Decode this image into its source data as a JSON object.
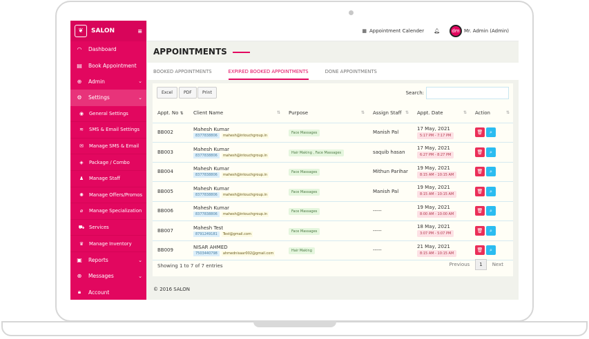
{
  "sidebar": {
    "brand": "SALON",
    "items": [
      {
        "label": "Dashboard",
        "icon": "gauge-icon"
      },
      {
        "label": "Book Appointment",
        "icon": "book-icon"
      },
      {
        "label": "Admin",
        "icon": "lifebuoy-icon",
        "chevron": true
      },
      {
        "label": "Settings",
        "icon": "gear-icon",
        "chevron": true,
        "active": true
      }
    ],
    "sub": [
      {
        "label": "General Settings"
      },
      {
        "label": "SMS & Email Settings"
      },
      {
        "label": "Manage SMS & Email"
      },
      {
        "label": "Package / Combo"
      },
      {
        "label": "Manage Staff"
      },
      {
        "label": "Manage Offers/Promos"
      },
      {
        "label": "Manage Specialization"
      },
      {
        "label": "Services"
      },
      {
        "label": "Manage Inventory"
      }
    ],
    "bottom": [
      {
        "label": "Reports"
      },
      {
        "label": "Messages"
      },
      {
        "label": "Account"
      }
    ]
  },
  "header": {
    "calendar": "Appointment Calender",
    "user": "Mr. Admin (Admin)",
    "avatar": "dm"
  },
  "page": {
    "title": "APPOINTMENTS",
    "tabs": [
      "BOOKED APPOINTMENTS",
      "EXPIRED BOOKED APPOINTMENTS",
      "DONE APPOINTMENTS"
    ],
    "active_tab": 1
  },
  "toolbar": {
    "excel": "Excel",
    "pdf": "PDF",
    "print": "Print",
    "search_label": "Search:",
    "search_value": ""
  },
  "table": {
    "headers": [
      "Appt. No",
      "Client Name",
      "Purpose",
      "Assign Staff",
      "Appt. Date",
      "Action"
    ],
    "rows": [
      {
        "no": "BB002",
        "name": "Mahesh Kumar",
        "phone": "8377838806",
        "email": "mahesh@intouchgroup.in",
        "purpose": "Face Massages",
        "staff": "Manish Pal",
        "date": "17 May, 2021",
        "time": "5:17 PM - 7:17 PM"
      },
      {
        "no": "BB003",
        "name": "Mahesh Kumar",
        "phone": "8377838806",
        "email": "mahesh@intouchgroup.in",
        "purpose": "Hair Making , Face Massages",
        "staff": "saquib hasan",
        "date": "17 May, 2021",
        "time": "6:27 PM - 8:27 PM"
      },
      {
        "no": "BB004",
        "name": "Mahesh Kumar",
        "phone": "8377838806",
        "email": "mahesh@intouchgroup.in",
        "purpose": "Face Massages",
        "staff": "Mithun Parihar",
        "date": "19 May, 2021",
        "time": "8:15 AM - 10:15 AM"
      },
      {
        "no": "BB005",
        "name": "Mahesh Kumar",
        "phone": "8377838806",
        "email": "mahesh@intouchgroup.in",
        "purpose": "Face Massages",
        "staff": "Manish Pal",
        "date": "19 May, 2021",
        "time": "8:15 AM - 10:15 AM"
      },
      {
        "no": "BB006",
        "name": "Mahesh Kumar",
        "phone": "8377838806",
        "email": "mahesh@intouchgroup.in",
        "purpose": "Face Massages",
        "staff": "-----",
        "date": "19 May, 2021",
        "time": "8:00 AM - 10:00 AM"
      },
      {
        "no": "BB007",
        "name": "Mahesh Test",
        "phone": "8791249181",
        "email": "Test@gmail.com",
        "purpose": "Face Massages",
        "staff": "-----",
        "date": "18 May, 2021",
        "time": "3:07 PM - 5:07 PM"
      },
      {
        "no": "BB009",
        "name": "NISAR AHMED",
        "phone": "7503440798",
        "email": "ahmednisaar002@gmail.com",
        "purpose": "Hair Making",
        "staff": "-----",
        "date": "21 May, 2021",
        "time": "8:15 AM - 10:15 AM"
      }
    ]
  },
  "footer": {
    "info": "Showing 1 to 7 of 7 entries",
    "previous": "Previous",
    "page": "1",
    "next": "Next",
    "copyright": "© 2016 SALON"
  },
  "colors": {
    "brand": "#e2075f",
    "delete": "#ea2f58",
    "view": "#2bbcf0"
  }
}
